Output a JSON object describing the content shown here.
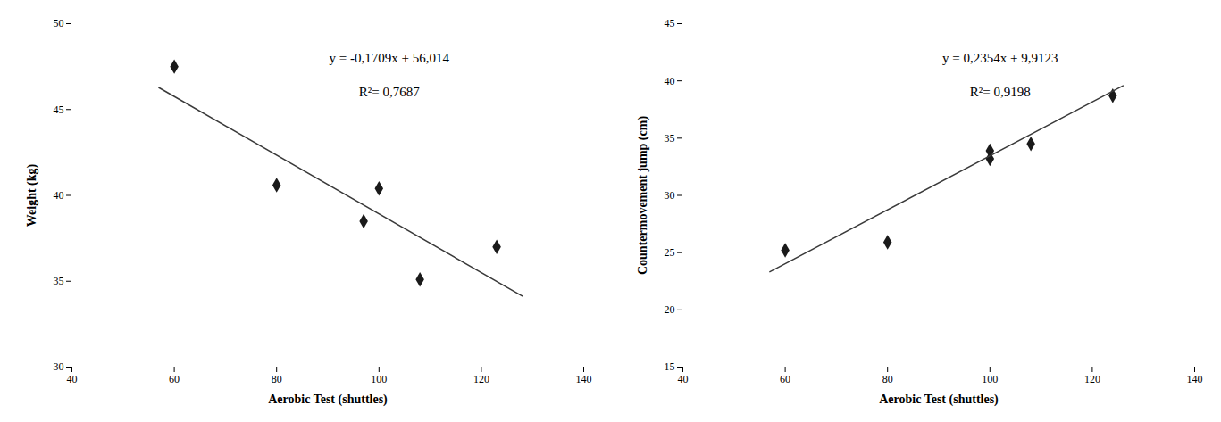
{
  "chart_data": [
    {
      "type": "scatter",
      "x_label": "Aerobic Test (shuttles)",
      "y_label": "Weight (kg)",
      "series": [
        {
          "type": "scatter",
          "marker": "diamond",
          "color": "#1a1a1a",
          "x": [
            60,
            80,
            97,
            100,
            108,
            123
          ],
          "values": [
            47.5,
            40.6,
            38.5,
            40.4,
            35.1,
            37.0
          ]
        },
        {
          "type": "line",
          "line_style": "solid",
          "color": "#3a3a3a",
          "x": [
            57,
            128
          ],
          "values": [
            46.2727,
            34.1388
          ]
        }
      ],
      "annotations": [
        "y = -0,1709x + 56,014",
        "R²= 0,7687"
      ],
      "xlim": [
        40,
        140
      ],
      "ylim": [
        30,
        50
      ],
      "xticks": [
        40,
        60,
        80,
        100,
        120,
        140
      ],
      "yticks": [
        30,
        35,
        40,
        45,
        50
      ],
      "grid": false
    },
    {
      "type": "scatter",
      "x_label": "Aerobic Test (shuttles)",
      "y_label": "Countermovement jump (cm)",
      "series": [
        {
          "type": "scatter",
          "marker": "diamond",
          "color": "#1a1a1a",
          "x": [
            60,
            80,
            100,
            100,
            108,
            124
          ],
          "values": [
            25.2,
            25.9,
            33.9,
            33.2,
            34.5,
            38.7
          ]
        },
        {
          "type": "line",
          "line_style": "solid",
          "color": "#3a3a3a",
          "x": [
            57,
            126
          ],
          "values": [
            23.3301,
            39.5727
          ]
        }
      ],
      "annotations": [
        "y = 0,2354x + 9,9123",
        "R²= 0,9198"
      ],
      "xlim": [
        40,
        140
      ],
      "ylim": [
        15,
        45
      ],
      "xticks": [
        40,
        60,
        80,
        100,
        120,
        140
      ],
      "yticks": [
        15,
        20,
        25,
        30,
        35,
        40,
        45
      ],
      "grid": false
    }
  ]
}
